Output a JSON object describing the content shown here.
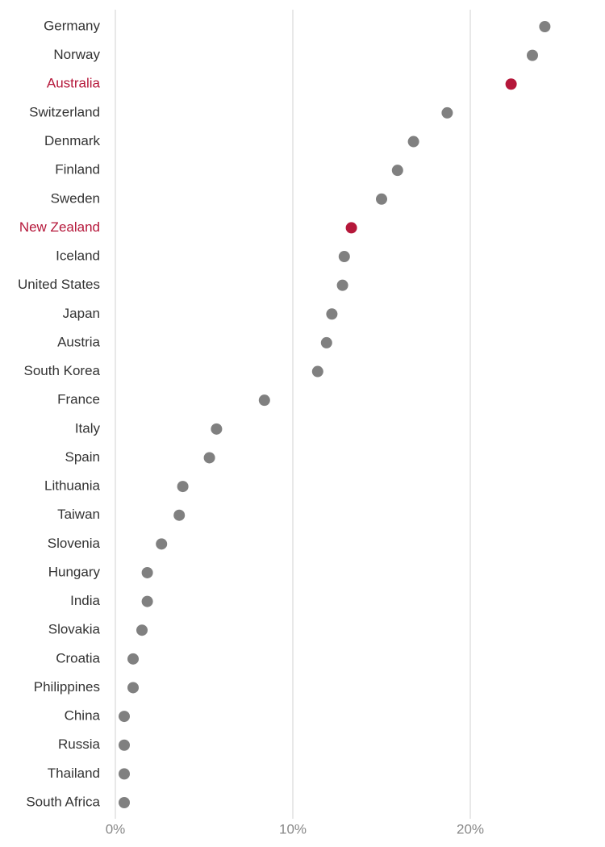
{
  "chart_data": {
    "type": "dot",
    "categories": [
      "Germany",
      "Norway",
      "Australia",
      "Switzerland",
      "Denmark",
      "Finland",
      "Sweden",
      "New Zealand",
      "Iceland",
      "United States",
      "Japan",
      "Austria",
      "South Korea",
      "France",
      "Italy",
      "Spain",
      "Lithuania",
      "Taiwan",
      "Slovenia",
      "Hungary",
      "India",
      "Slovakia",
      "Croatia",
      "Philippines",
      "China",
      "Russia",
      "Thailand",
      "South Africa"
    ],
    "values": [
      24.2,
      23.5,
      22.3,
      18.7,
      16.8,
      15.9,
      15.0,
      13.3,
      12.9,
      12.8,
      12.2,
      11.9,
      11.4,
      8.4,
      5.7,
      5.3,
      3.8,
      3.6,
      2.6,
      1.8,
      1.8,
      1.5,
      1.0,
      1.0,
      0.5,
      0.5,
      0.5,
      0.5
    ],
    "color": "#808080",
    "colors": [
      "#808080",
      "#808080",
      "#b5173a",
      "#808080",
      "#808080",
      "#808080",
      "#808080",
      "#b5173a",
      "#808080",
      "#808080",
      "#808080",
      "#808080",
      "#808080",
      "#808080",
      "#808080",
      "#808080",
      "#808080",
      "#808080",
      "#808080",
      "#808080",
      "#808080",
      "#808080",
      "#808080",
      "#808080",
      "#808080",
      "#808080",
      "#808080",
      "#808080"
    ],
    "xlim": [
      0,
      27
    ],
    "xticks": [
      {
        "value": 0,
        "label": "0%"
      },
      {
        "value": 10,
        "label": "10%"
      },
      {
        "value": 20,
        "label": "20%"
      }
    ],
    "grid": true
  }
}
